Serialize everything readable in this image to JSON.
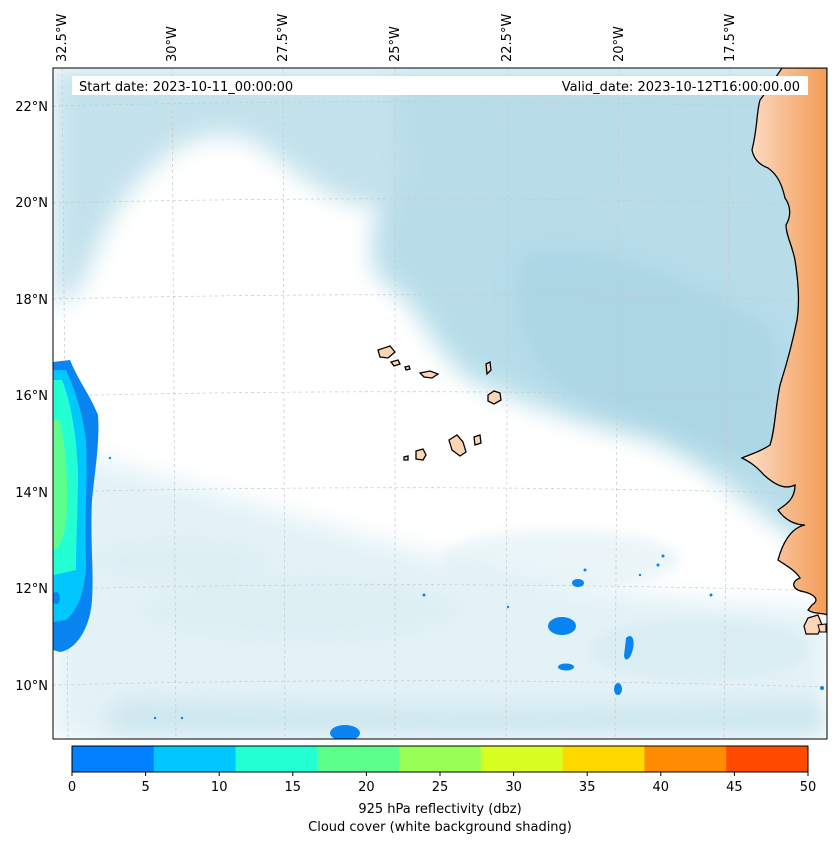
{
  "map": {
    "start_date": "Start date: 2023-10-11_00:00:00",
    "valid_date": "Valid_date: 2023-10-12T16:00:00.00",
    "lon_labels": [
      "32.5°W",
      "30°W",
      "27.5°W",
      "25°W",
      "22.5°W",
      "20°W",
      "17.5°W"
    ],
    "lat_labels": [
      "22°N",
      "20°N",
      "18°N",
      "16°N",
      "14°N",
      "12°N",
      "10°N"
    ]
  },
  "colorbar": {
    "ticks": [
      "0",
      "5",
      "10",
      "15",
      "20",
      "25",
      "30",
      "35",
      "40",
      "45",
      "50"
    ],
    "colors": [
      "#0080ff",
      "#00c8ff",
      "#22ffd2",
      "#5cff8c",
      "#9aff55",
      "#d8ff22",
      "#ffd800",
      "#ff8c00",
      "#ff4a00"
    ],
    "label": "925 hPa reflectivity (dbz)",
    "sublabel": "Cloud cover (white background shading)"
  },
  "colors": {
    "cloud": "#a9d6e5",
    "land_light": "#fddcc2",
    "land_dark": "#f4a15f",
    "reflect_low": "#0a84f0"
  }
}
